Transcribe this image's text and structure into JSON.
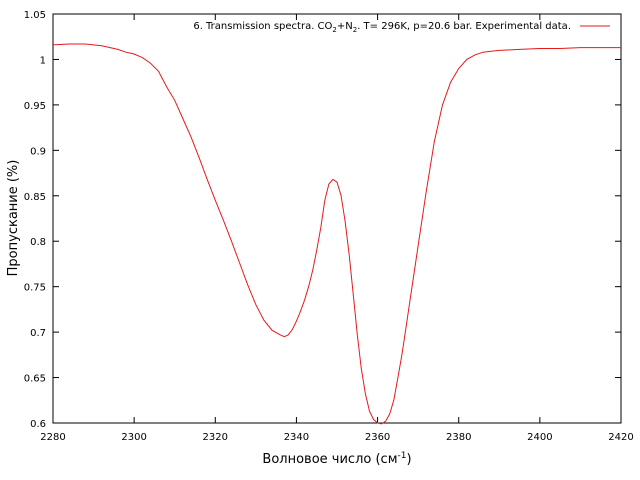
{
  "chart_data": {
    "type": "line",
    "title": "",
    "xlabel": "Волновое число (см",
    "xlabel_sup": "-1",
    "xlabel_suffix": ")",
    "ylabel": "Пропускание (%)",
    "xlim": [
      2280,
      2420
    ],
    "ylim": [
      0.6,
      1.05
    ],
    "xticks": [
      2280,
      2300,
      2320,
      2340,
      2360,
      2380,
      2400,
      2420
    ],
    "xtick_labels": [
      "2280",
      "2300",
      "2320",
      "2340",
      "2360",
      "2380",
      "2400",
      "2420"
    ],
    "yticks": [
      0.6,
      0.65,
      0.7,
      0.75,
      0.8,
      0.85,
      0.9,
      0.95,
      1.0,
      1.05
    ],
    "ytick_labels": [
      "0.6",
      "0.65",
      "0.7",
      "0.75",
      "0.8",
      "0.85",
      "0.9",
      "0.95",
      "1",
      "1.05"
    ],
    "grid": false,
    "legend_position": "top-right",
    "legend": {
      "prefix": "6. Transmission spectra. CO",
      "sub1": "2",
      "mid": "+N",
      "sub2": "2",
      "suffix": ". T= 296K, p=20.6 bar. Experimental data."
    },
    "series_color": "#e41a1c",
    "series": [
      {
        "x": [
          2280,
          2284,
          2288,
          2292,
          2296,
          2298,
          2300,
          2302,
          2304,
          2306,
          2308,
          2310,
          2312,
          2314,
          2316,
          2318,
          2320,
          2322,
          2324,
          2326,
          2328,
          2330,
          2332,
          2334,
          2336,
          2337,
          2338,
          2339,
          2340,
          2341,
          2342,
          2343,
          2344,
          2345,
          2346,
          2347,
          2348,
          2349,
          2350,
          2351,
          2352,
          2353,
          2354,
          2355,
          2356,
          2357,
          2358,
          2359,
          2360,
          2361,
          2362,
          2363,
          2364,
          2365,
          2366,
          2367,
          2368,
          2369,
          2370,
          2372,
          2374,
          2376,
          2378,
          2380,
          2382,
          2384,
          2386,
          2388,
          2390,
          2395,
          2400,
          2405,
          2410,
          2415,
          2420
        ],
        "y": [
          1.016,
          1.017,
          1.017,
          1.015,
          1.011,
          1.008,
          1.006,
          1.002,
          0.996,
          0.987,
          0.97,
          0.955,
          0.935,
          0.915,
          0.892,
          0.868,
          0.845,
          0.823,
          0.8,
          0.776,
          0.752,
          0.73,
          0.713,
          0.702,
          0.697,
          0.695,
          0.697,
          0.703,
          0.712,
          0.723,
          0.735,
          0.75,
          0.768,
          0.79,
          0.815,
          0.845,
          0.863,
          0.868,
          0.865,
          0.85,
          0.822,
          0.785,
          0.742,
          0.697,
          0.66,
          0.632,
          0.613,
          0.604,
          0.6,
          0.599,
          0.602,
          0.61,
          0.625,
          0.65,
          0.675,
          0.705,
          0.735,
          0.765,
          0.795,
          0.855,
          0.91,
          0.95,
          0.975,
          0.99,
          1.0,
          1.005,
          1.008,
          1.009,
          1.01,
          1.011,
          1.012,
          1.012,
          1.013,
          1.013,
          1.013
        ]
      }
    ]
  }
}
